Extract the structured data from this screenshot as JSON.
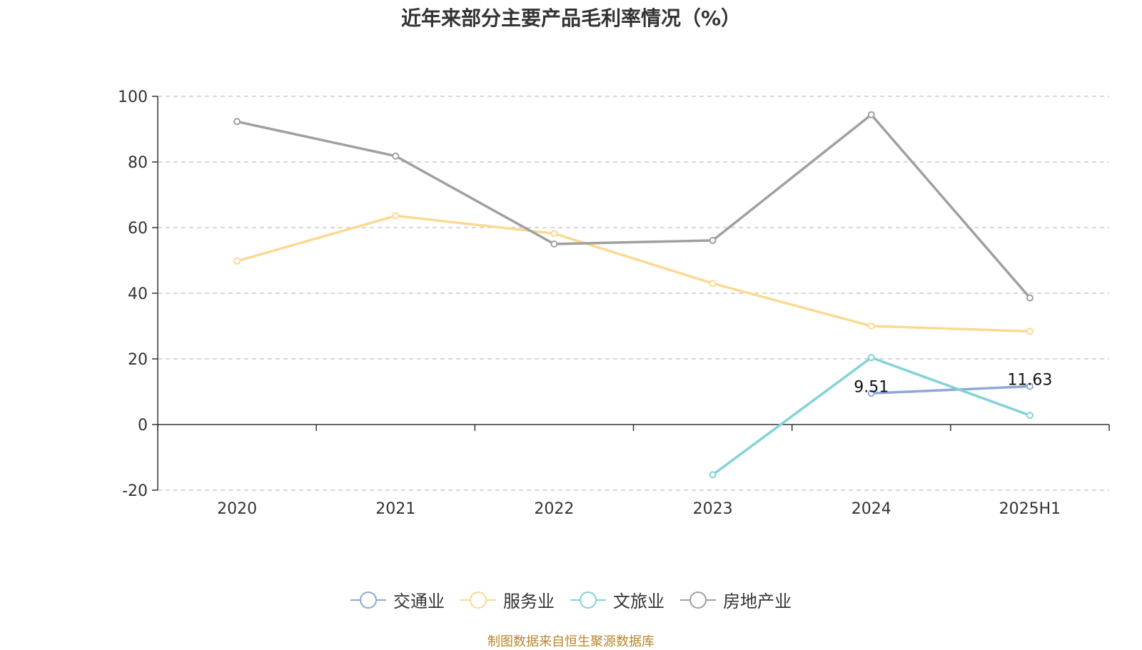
{
  "chart_data": {
    "type": "line",
    "title": "近年来部分主要产品毛利率情况（%）",
    "categories": [
      "2020",
      "2021",
      "2022",
      "2023",
      "2024",
      "2025H1"
    ],
    "ylim": [
      -20,
      100
    ],
    "yticks": [
      "-20",
      "0",
      "20",
      "40",
      "60",
      "80",
      "100"
    ],
    "grid": true,
    "legend_position": "bottom",
    "series": [
      {
        "name": "交通业",
        "color": "#8fa8d6",
        "values": [
          null,
          null,
          null,
          null,
          9.51,
          11.63
        ],
        "labels": [
          "",
          "",
          "",
          "",
          "9.51",
          "11.63"
        ]
      },
      {
        "name": "服务业",
        "color": "#fcd993",
        "values": [
          49.8,
          63.6,
          58.2,
          43.0,
          30.0,
          28.4
        ],
        "labels": [
          "",
          "",
          "",
          "",
          "",
          ""
        ]
      },
      {
        "name": "文旅业",
        "color": "#82d3d6",
        "values": [
          null,
          null,
          null,
          -15.3,
          20.4,
          2.8
        ],
        "labels": [
          "",
          "",
          "",
          "",
          "",
          ""
        ]
      },
      {
        "name": "房地产业",
        "color": "#a0a0a0",
        "values": [
          92.3,
          81.8,
          55.0,
          56.1,
          94.4,
          38.6
        ],
        "labels": [
          "",
          "",
          "",
          "",
          "",
          ""
        ]
      }
    ]
  },
  "source": "制图数据来自恒生聚源数据库"
}
